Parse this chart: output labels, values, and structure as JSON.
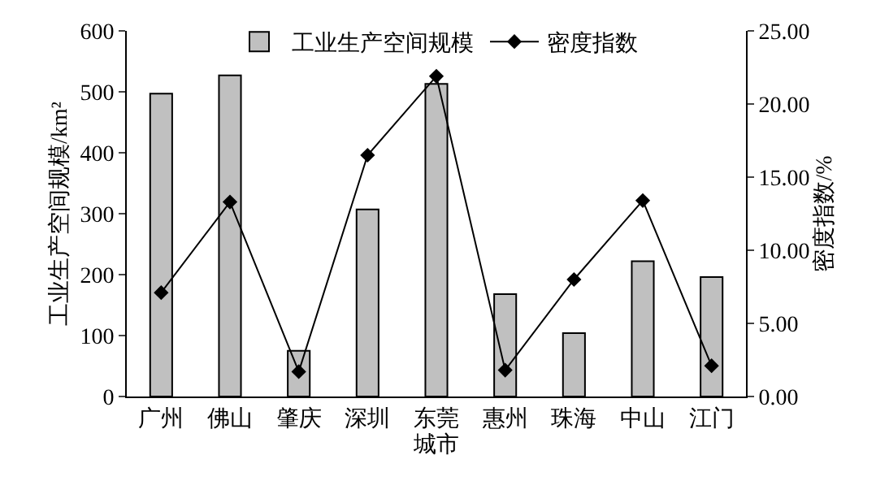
{
  "chart_data": {
    "type": "bar",
    "xlabel": "城市",
    "ylabel": "工业生产空间规模/km²",
    "y2label": "密度指数/%",
    "categories": [
      "广州",
      "佛山",
      "肇庆",
      "深圳",
      "东莞",
      "惠州",
      "珠海",
      "中山",
      "江门"
    ],
    "series": [
      {
        "name": "工业生产空间规模",
        "color": "#c0c0c0",
        "values": [
          497,
          527,
          75,
          307,
          513,
          168,
          104,
          222,
          196
        ]
      },
      {
        "name": "密度指数",
        "type": "line",
        "axis": "y2",
        "color": "#000000",
        "marker": "diamond",
        "values": [
          7.1,
          13.3,
          1.7,
          16.5,
          21.9,
          1.8,
          8.0,
          13.4,
          2.1
        ]
      }
    ],
    "ylim": [
      0,
      600
    ],
    "yticks": [
      0,
      100,
      200,
      300,
      400,
      500,
      600
    ],
    "y2lim": [
      0,
      25
    ],
    "y2ticks": [
      {
        "value": 0,
        "label": "0.00"
      },
      {
        "value": 5,
        "label": "5.00"
      },
      {
        "value": 10,
        "label": "10.00"
      },
      {
        "value": 15,
        "label": "15.00"
      },
      {
        "value": 20,
        "label": "20.00"
      },
      {
        "value": 25,
        "label": "25.00"
      }
    ],
    "grid": false,
    "legend": "top"
  }
}
